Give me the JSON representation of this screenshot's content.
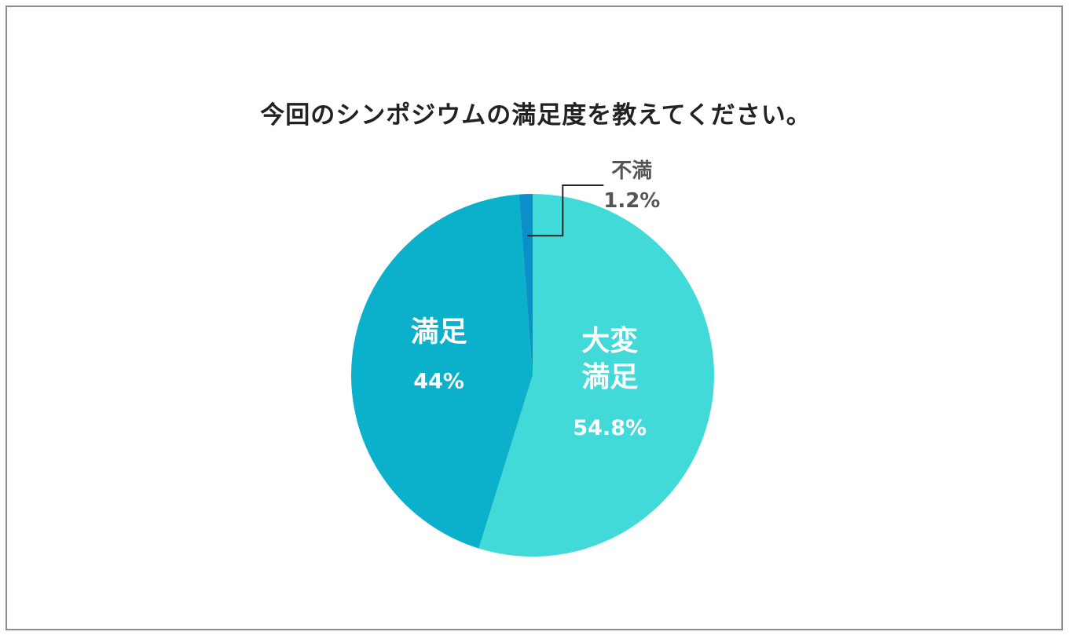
{
  "chart_data": {
    "type": "pie",
    "title": "今回のシンポジウムの満足度を教えてください。",
    "slices": [
      {
        "label": "大変満足",
        "label_lines": [
          "大変",
          "満足"
        ],
        "value": 54.8,
        "value_text": "54.8%",
        "color": "#42d9d9",
        "label_color": "#ffffff"
      },
      {
        "label": "満足",
        "label_lines": [
          "満足"
        ],
        "value": 44,
        "value_text": "44%",
        "color": "#0bb0cb",
        "label_color": "#ffffff"
      },
      {
        "label": "不満",
        "label_lines": [
          "不満"
        ],
        "value": 1.2,
        "value_text": "1.2%",
        "color": "#0b8fc6",
        "label_color": "#555555"
      }
    ],
    "start_angle": "12 o'clock",
    "direction": "clockwise",
    "legend": "none",
    "grid": false
  }
}
